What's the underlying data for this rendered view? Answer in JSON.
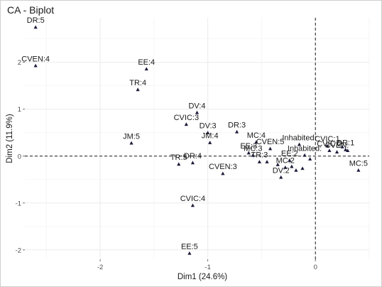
{
  "chart_data": {
    "type": "scatter",
    "title": "CA - Biplot",
    "xlabel": "Dim1 (24.6%)",
    "ylabel": "Dim2 (11.9%)",
    "xlim": [
      -2.7,
      0.5
    ],
    "ylim": [
      -2.2,
      2.95
    ],
    "xticks": [
      -2,
      -1,
      0
    ],
    "yticks": [
      -2,
      -1,
      0,
      1,
      2
    ],
    "grid": true,
    "reference_lines": {
      "x": 0,
      "y": 0,
      "style": "dashed"
    },
    "point_color": "#1b1b3a",
    "points": [
      {
        "label": "DR:5",
        "x": -2.6,
        "y": 2.75
      },
      {
        "label": "CVEN:4",
        "x": -2.6,
        "y": 1.93
      },
      {
        "label": "EE:4",
        "x": -1.57,
        "y": 1.86
      },
      {
        "label": "TR:4",
        "x": -1.65,
        "y": 1.42
      },
      {
        "label": "DV:4",
        "x": -1.1,
        "y": 0.93
      },
      {
        "label": "CVIC:3",
        "x": -1.2,
        "y": 0.68
      },
      {
        "label": "DV:3",
        "x": -1.0,
        "y": 0.5
      },
      {
        "label": "DR:3",
        "x": -0.73,
        "y": 0.52
      },
      {
        "label": "JM:4",
        "x": -0.98,
        "y": 0.29
      },
      {
        "label": "JM:5",
        "x": -1.71,
        "y": 0.28
      },
      {
        "label": "MC:4",
        "x": -0.55,
        "y": 0.3
      },
      {
        "label": "EE:3",
        "x": -0.62,
        "y": 0.07
      },
      {
        "label": "MC:3",
        "x": -0.58,
        "y": 0.02
      },
      {
        "label": "CVEN:5",
        "x": -0.42,
        "y": 0.16
      },
      {
        "label": "TR:5",
        "x": -1.27,
        "y": -0.17
      },
      {
        "label": "DR:4",
        "x": -1.14,
        "y": -0.14
      },
      {
        "label": "TR:3",
        "x": -0.52,
        "y": -0.12
      },
      {
        "label": "CVEN:3",
        "x": -0.86,
        "y": -0.37
      },
      {
        "label": "DV:2",
        "x": -0.32,
        "y": -0.45
      },
      {
        "label": "Inhabited:",
        "x": -0.15,
        "y": 0.25
      },
      {
        "label": "Inhabited:",
        "x": -0.1,
        "y": 0.02
      },
      {
        "label": "CVIC:1",
        "x": 0.11,
        "y": 0.22
      },
      {
        "label": "CVEN:",
        "x": 0.2,
        "y": 0.09
      },
      {
        "label": "DR:1",
        "x": 0.28,
        "y": 0.14
      },
      {
        "label": "CVIC:2",
        "x": 0.13,
        "y": 0.12
      },
      {
        "label": "MC:2",
        "x": -0.28,
        "y": -0.24
      },
      {
        "label": "EE:2",
        "x": -0.24,
        "y": -0.09
      },
      {
        "label": "MC:5",
        "x": 0.4,
        "y": -0.3
      },
      {
        "label": "CVIC:4",
        "x": -1.14,
        "y": -1.05
      },
      {
        "label": "EE:5",
        "x": -1.17,
        "y": -2.07
      }
    ],
    "unlabeled_points": [
      {
        "x": -0.45,
        "y": -0.12
      },
      {
        "x": -0.35,
        "y": -0.18
      },
      {
        "x": -0.22,
        "y": -0.22
      },
      {
        "x": -0.18,
        "y": -0.3
      },
      {
        "x": -0.12,
        "y": -0.26
      },
      {
        "x": -0.05,
        "y": -0.06
      },
      {
        "x": 0.25,
        "y": 0.2
      },
      {
        "x": 0.3,
        "y": 0.12
      }
    ]
  }
}
